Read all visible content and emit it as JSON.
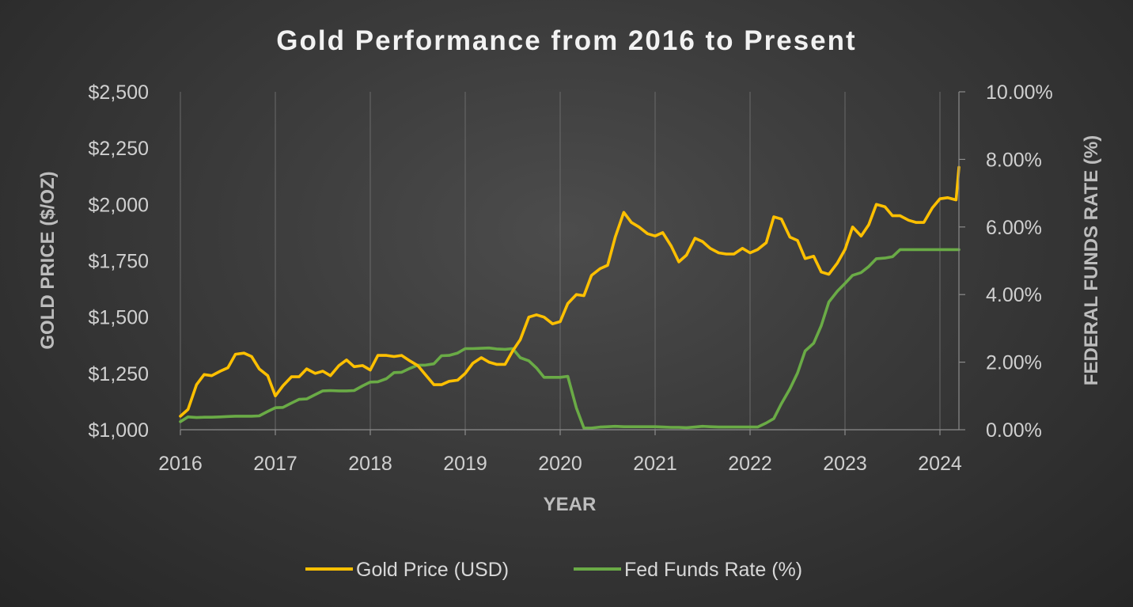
{
  "chart_data": {
    "type": "line",
    "title": "Gold Performance from 2016 to Present",
    "xlabel": "YEAR",
    "ylabel": "GOLD PRICE ($/OZ)",
    "y2label": "FEDERAL FUNDS RATE (%)",
    "x_ticks": [
      "2016",
      "2017",
      "2018",
      "2019",
      "2020",
      "2021",
      "2022",
      "2023",
      "2024"
    ],
    "y_ticks": [
      "$1,000",
      "$1,250",
      "$1,500",
      "$1,750",
      "$2,000",
      "$2,250",
      "$2,500"
    ],
    "y2_ticks": [
      "0.00%",
      "2.00%",
      "4.00%",
      "6.00%",
      "8.00%",
      "10.00%"
    ],
    "xlim": [
      2016.0,
      2024.2
    ],
    "ylim": [
      1000,
      2500
    ],
    "y2lim": [
      0,
      10
    ],
    "grid": "vertical",
    "legend": "bottom",
    "series": [
      {
        "name": "Gold Price (USD)",
        "axis": "left",
        "color": "#ffc000",
        "x": [
          2016.0,
          2016.08,
          2016.17,
          2016.25,
          2016.33,
          2016.42,
          2016.5,
          2016.58,
          2016.67,
          2016.75,
          2016.83,
          2016.92,
          2017.0,
          2017.08,
          2017.17,
          2017.25,
          2017.33,
          2017.42,
          2017.5,
          2017.58,
          2017.67,
          2017.75,
          2017.83,
          2017.92,
          2018.0,
          2018.08,
          2018.17,
          2018.25,
          2018.33,
          2018.42,
          2018.5,
          2018.58,
          2018.67,
          2018.75,
          2018.83,
          2018.92,
          2019.0,
          2019.08,
          2019.17,
          2019.25,
          2019.33,
          2019.42,
          2019.5,
          2019.58,
          2019.67,
          2019.75,
          2019.83,
          2019.92,
          2020.0,
          2020.08,
          2020.17,
          2020.25,
          2020.33,
          2020.42,
          2020.5,
          2020.58,
          2020.67,
          2020.75,
          2020.83,
          2020.92,
          2021.0,
          2021.08,
          2021.17,
          2021.25,
          2021.33,
          2021.42,
          2021.5,
          2021.58,
          2021.67,
          2021.75,
          2021.83,
          2021.92,
          2022.0,
          2022.08,
          2022.17,
          2022.25,
          2022.33,
          2022.42,
          2022.5,
          2022.58,
          2022.67,
          2022.75,
          2022.83,
          2022.92,
          2023.0,
          2023.08,
          2023.17,
          2023.25,
          2023.33,
          2023.42,
          2023.5,
          2023.58,
          2023.67,
          2023.75,
          2023.83,
          2023.92,
          2024.0,
          2024.08,
          2024.17,
          2024.2
        ],
        "y": [
          1060,
          1090,
          1200,
          1245,
          1240,
          1260,
          1275,
          1335,
          1340,
          1325,
          1270,
          1240,
          1150,
          1195,
          1235,
          1235,
          1270,
          1250,
          1260,
          1240,
          1285,
          1310,
          1280,
          1285,
          1265,
          1330,
          1330,
          1325,
          1330,
          1305,
          1285,
          1245,
          1200,
          1200,
          1215,
          1220,
          1250,
          1295,
          1320,
          1300,
          1290,
          1290,
          1350,
          1400,
          1500,
          1510,
          1500,
          1470,
          1480,
          1560,
          1600,
          1595,
          1685,
          1715,
          1730,
          1855,
          1965,
          1920,
          1900,
          1870,
          1860,
          1875,
          1815,
          1745,
          1775,
          1850,
          1835,
          1805,
          1785,
          1780,
          1780,
          1805,
          1785,
          1800,
          1830,
          1945,
          1935,
          1855,
          1840,
          1760,
          1770,
          1700,
          1690,
          1740,
          1800,
          1900,
          1860,
          1910,
          2000,
          1990,
          1950,
          1950,
          1930,
          1920,
          1920,
          1985,
          2025,
          2030,
          2020,
          2165
        ]
      },
      {
        "name": "Fed Funds Rate (%)",
        "axis": "right",
        "color": "#6aab46",
        "x": [
          2016.0,
          2016.08,
          2016.17,
          2016.25,
          2016.33,
          2016.42,
          2016.5,
          2016.58,
          2016.67,
          2016.75,
          2016.83,
          2016.92,
          2017.0,
          2017.08,
          2017.17,
          2017.25,
          2017.33,
          2017.42,
          2017.5,
          2017.58,
          2017.67,
          2017.75,
          2017.83,
          2017.92,
          2018.0,
          2018.08,
          2018.17,
          2018.25,
          2018.33,
          2018.42,
          2018.5,
          2018.58,
          2018.67,
          2018.75,
          2018.83,
          2018.92,
          2019.0,
          2019.08,
          2019.17,
          2019.25,
          2019.33,
          2019.42,
          2019.5,
          2019.58,
          2019.67,
          2019.75,
          2019.83,
          2019.92,
          2020.0,
          2020.08,
          2020.17,
          2020.25,
          2020.33,
          2020.42,
          2020.5,
          2020.58,
          2020.67,
          2020.75,
          2020.83,
          2020.92,
          2021.0,
          2021.08,
          2021.17,
          2021.25,
          2021.33,
          2021.42,
          2021.5,
          2021.58,
          2021.67,
          2021.75,
          2021.83,
          2021.92,
          2022.0,
          2022.08,
          2022.17,
          2022.25,
          2022.33,
          2022.42,
          2022.5,
          2022.58,
          2022.67,
          2022.75,
          2022.83,
          2022.92,
          2023.0,
          2023.08,
          2023.17,
          2023.25,
          2023.33,
          2023.42,
          2023.5,
          2023.58,
          2023.67,
          2023.75,
          2023.83,
          2023.92,
          2024.0,
          2024.08,
          2024.17,
          2024.2
        ],
        "y": [
          0.24,
          0.38,
          0.36,
          0.37,
          0.37,
          0.38,
          0.39,
          0.4,
          0.4,
          0.4,
          0.41,
          0.54,
          0.65,
          0.66,
          0.79,
          0.9,
          0.91,
          1.04,
          1.15,
          1.16,
          1.15,
          1.15,
          1.16,
          1.3,
          1.41,
          1.42,
          1.51,
          1.69,
          1.7,
          1.82,
          1.91,
          1.91,
          1.95,
          2.19,
          2.2,
          2.27,
          2.4,
          2.4,
          2.41,
          2.42,
          2.39,
          2.38,
          2.4,
          2.13,
          2.04,
          1.83,
          1.55,
          1.55,
          1.55,
          1.58,
          0.65,
          0.05,
          0.05,
          0.08,
          0.09,
          0.1,
          0.09,
          0.09,
          0.09,
          0.09,
          0.09,
          0.08,
          0.07,
          0.07,
          0.06,
          0.08,
          0.1,
          0.09,
          0.08,
          0.08,
          0.08,
          0.08,
          0.08,
          0.08,
          0.2,
          0.33,
          0.77,
          1.21,
          1.68,
          2.33,
          2.56,
          3.08,
          3.78,
          4.1,
          4.33,
          4.57,
          4.65,
          4.83,
          5.06,
          5.08,
          5.12,
          5.33,
          5.33,
          5.33,
          5.33,
          5.33,
          5.33,
          5.33,
          5.33,
          5.33
        ]
      }
    ]
  }
}
